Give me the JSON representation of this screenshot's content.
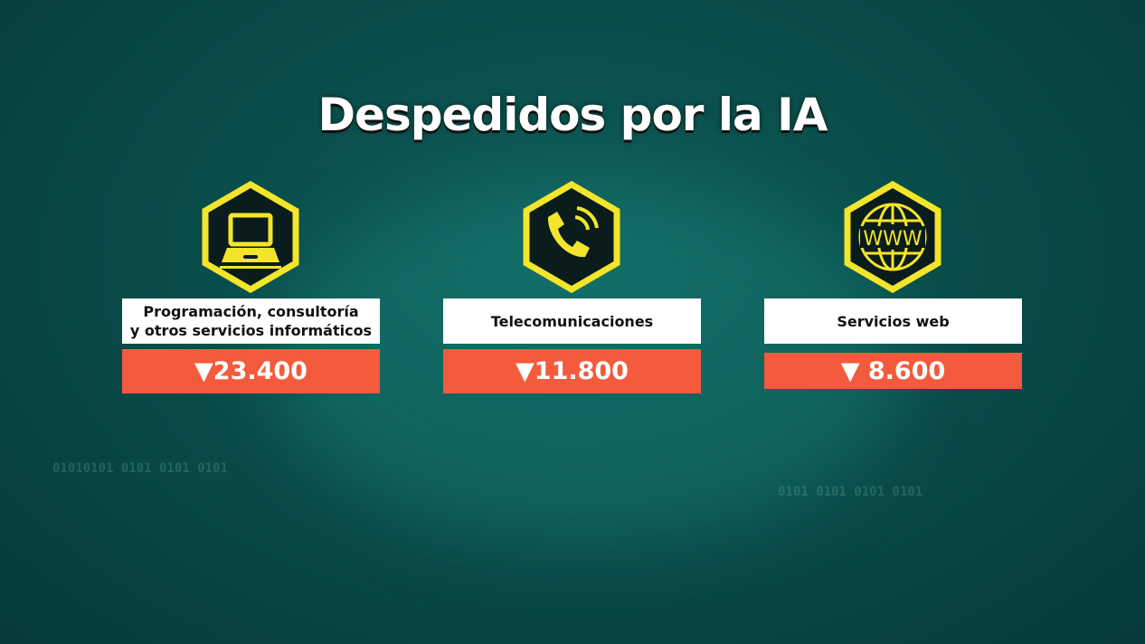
{
  "title": "Despedidos por la IA",
  "colors": {
    "accent_yellow": "#f2e52b",
    "value_bg": "#f45a3c",
    "background": "#0a4d4a"
  },
  "cards": [
    {
      "icon": "laptop-icon",
      "label_line1": "Programación, consultoría",
      "label_line2": "y otros servicios informáticos",
      "value": "▼23.400"
    },
    {
      "icon": "phone-icon",
      "label_line1": "Telecomunicaciones",
      "label_line2": "",
      "value": "▼11.800"
    },
    {
      "icon": "www-globe-icon",
      "label_line1": "Servicios web",
      "label_line2": "",
      "value": "▼ 8.600"
    }
  ]
}
